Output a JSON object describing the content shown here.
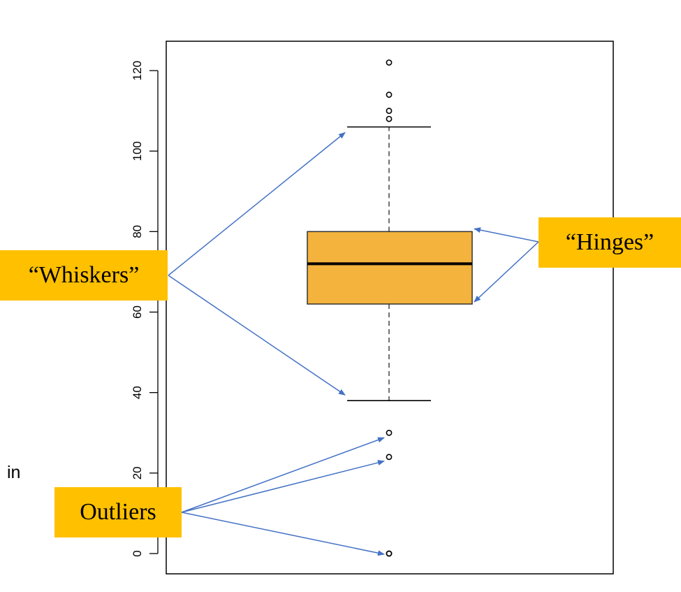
{
  "chart_data": {
    "type": "box",
    "ylim": [
      -5,
      128
    ],
    "yticks": [
      0,
      20,
      40,
      60,
      80,
      100,
      120
    ],
    "box": {
      "whisker_low": 38,
      "q1": 62,
      "median": 72,
      "q3": 80,
      "whisker_high": 106
    },
    "outliers": [
      0,
      0,
      24,
      30,
      108,
      110,
      114,
      122
    ],
    "colors": {
      "box_fill": "#F3B33D",
      "box_stroke": "#333333",
      "arrow": "#4472C4",
      "callout": "#FFC000"
    }
  },
  "annotations": {
    "whiskers": "“Whiskers”",
    "hinges": "“Hinges”",
    "outliers": "Outliers"
  },
  "stray_text": "in"
}
